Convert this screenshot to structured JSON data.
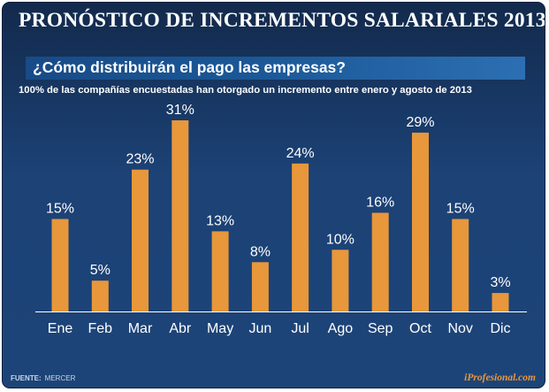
{
  "header": {
    "title": "PRONÓSTICO DE INCREMENTOS SALARIALES 2013",
    "subtitle": "¿Cómo distribuirán el pago las empresas?",
    "note": "100% de las compañías encuestadas han otorgado un incremento entre enero y agosto de 2013"
  },
  "footer": {
    "source_label": "FUENTE:",
    "source_value": "MERCER",
    "brand": "iProfesional.com"
  },
  "colors": {
    "bar": "#e8973a",
    "text": "#ffffff",
    "axis": "#ffffff"
  },
  "chart_data": {
    "type": "bar",
    "title": "¿Cómo distribuirán el pago las empresas?",
    "xlabel": "",
    "ylabel": "",
    "categories": [
      "Ene",
      "Feb",
      "Mar",
      "Abr",
      "May",
      "Jun",
      "Jul",
      "Ago",
      "Sep",
      "Oct",
      "Nov",
      "Dic"
    ],
    "values": [
      15,
      5,
      23,
      31,
      13,
      8,
      24,
      10,
      16,
      29,
      15,
      3
    ],
    "value_labels": [
      "15%",
      "5%",
      "23%",
      "31%",
      "13%",
      "8%",
      "24%",
      "10%",
      "16%",
      "29%",
      "15%",
      "3%"
    ],
    "ylim": [
      0,
      31
    ],
    "grid": false,
    "legend": "none"
  }
}
